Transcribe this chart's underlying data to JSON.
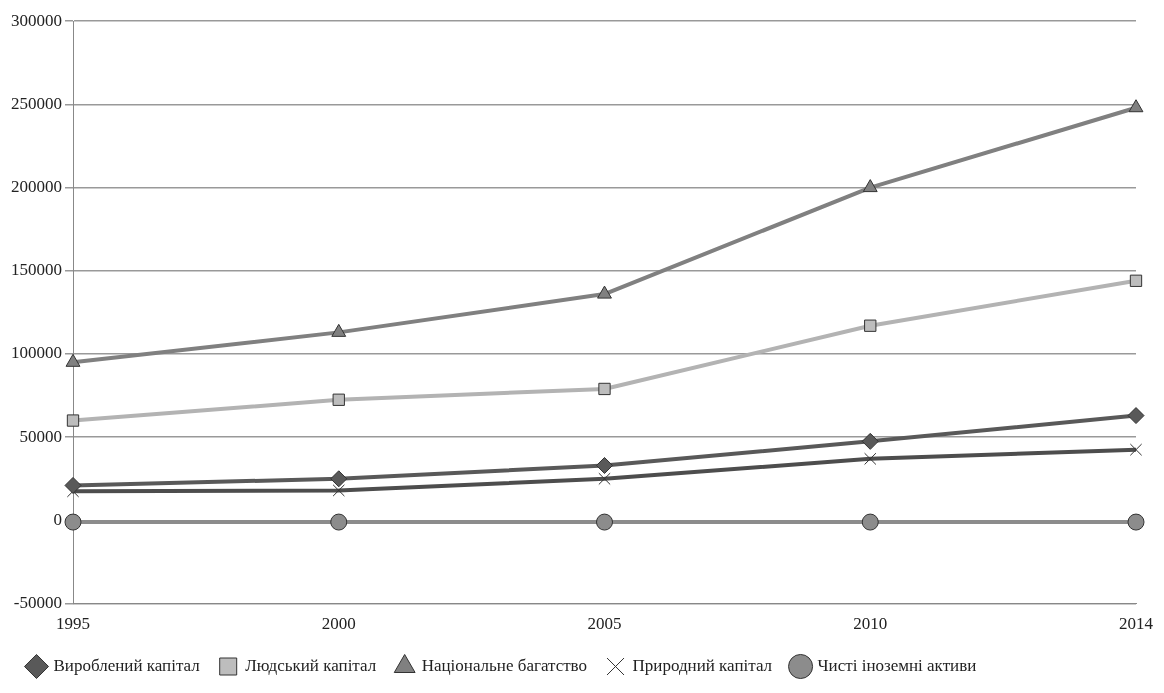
{
  "chart_data": {
    "type": "line",
    "categories": [
      "1995",
      "2000",
      "2005",
      "2010",
      "2014"
    ],
    "series": [
      {
        "name": "Вироблений капітал",
        "color": "#595959",
        "marker": "diamond",
        "values": [
          21000,
          25000,
          33000,
          47500,
          63000
        ]
      },
      {
        "name": "Людський капітал",
        "color": "#b3b3b3",
        "marker": "square",
        "values": [
          60000,
          72500,
          79000,
          117000,
          144000
        ]
      },
      {
        "name": "Національне багатство",
        "color": "#808080",
        "marker": "triangle",
        "values": [
          95000,
          113000,
          136000,
          200000,
          248000
        ]
      },
      {
        "name": "Природний капітал",
        "color": "#4d4d4d",
        "marker": "cross",
        "values": [
          17500,
          18000,
          25000,
          37000,
          42500
        ]
      },
      {
        "name": "Чисті іноземні активи",
        "color": "#8c8c8c",
        "marker": "circle",
        "values": [
          -1000,
          -1000,
          -1000,
          -1000,
          -1000
        ]
      }
    ],
    "ylim": [
      -50000,
      300000
    ],
    "yticks": [
      -50000,
      0,
      50000,
      100000,
      150000,
      200000,
      250000,
      300000
    ],
    "grid": "y",
    "legend": "bottom",
    "line_style": "solid"
  }
}
